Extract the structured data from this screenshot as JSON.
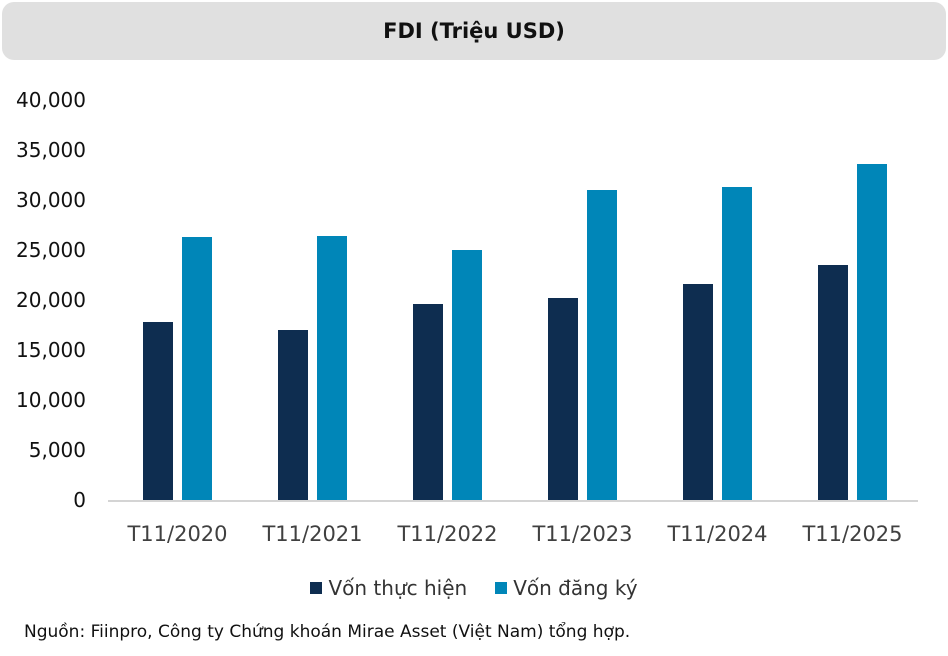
{
  "header": {
    "title": "FDI (Triệu USD)"
  },
  "colors": {
    "series_1": "#0e2d50",
    "series_2": "#0086b8",
    "title_bg": "#e0e0e0"
  },
  "chart_data": {
    "type": "bar",
    "title": "FDI (Triệu USD)",
    "xlabel": "",
    "ylabel": "",
    "ylim": [
      0,
      40000
    ],
    "yticks": [
      "0",
      "5,000",
      "10,000",
      "15,000",
      "20,000",
      "25,000",
      "30,000",
      "35,000",
      "40,000"
    ],
    "categories": [
      "T11/2020",
      "T11/2021",
      "T11/2022",
      "T11/2023",
      "T11/2024",
      "T11/2025"
    ],
    "series": [
      {
        "name": "Vốn thực hiện",
        "color": "#0e2d50",
        "values": [
          17800,
          17000,
          19600,
          20200,
          21600,
          23500
        ]
      },
      {
        "name": "Vốn đăng ký",
        "color": "#0086b8",
        "values": [
          26300,
          26400,
          25000,
          31000,
          31300,
          33600
        ]
      }
    ],
    "grid": false,
    "legend_position": "bottom"
  },
  "legend": {
    "items": [
      "Vốn thực hiện",
      "Vốn đăng ký"
    ]
  },
  "footer": {
    "source": "Nguồn: Fiinpro, Công ty Chứng khoán Mirae Asset (Việt Nam) tổng hợp."
  }
}
